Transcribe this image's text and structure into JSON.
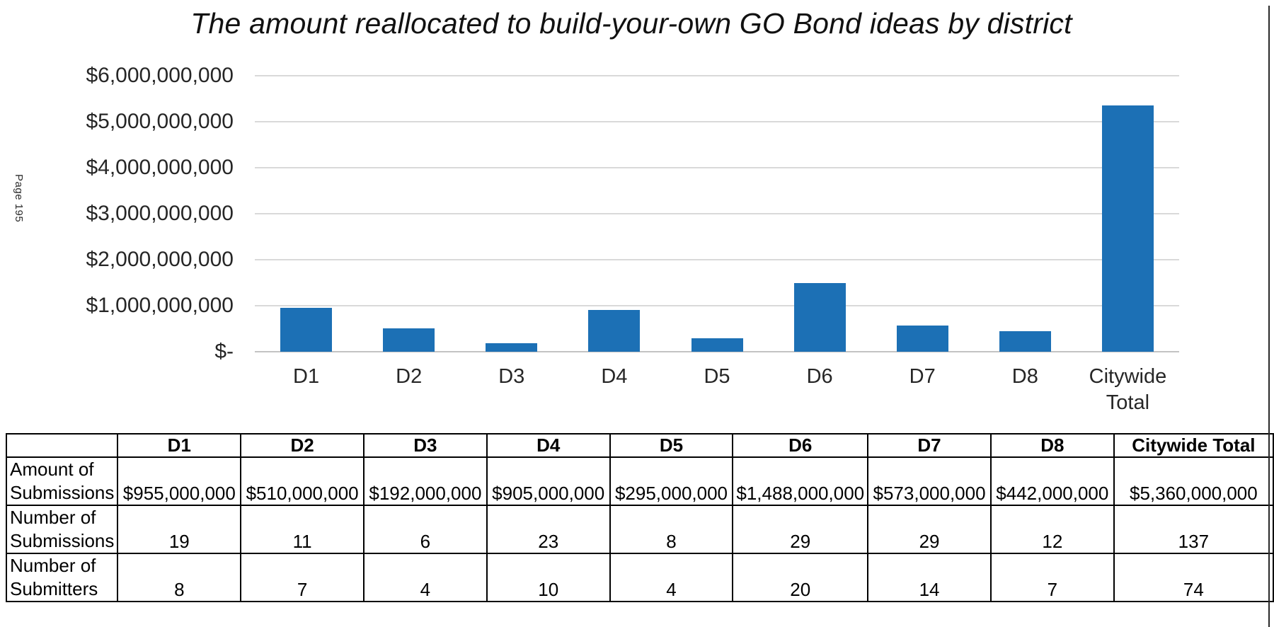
{
  "page_marker": "Page 195",
  "chart_data": {
    "type": "bar",
    "title": "The amount reallocated to build-your-own GO Bond ideas by district",
    "categories": [
      "D1",
      "D2",
      "D3",
      "D4",
      "D5",
      "D6",
      "D7",
      "D8",
      "Citywide Total"
    ],
    "values": [
      955000000,
      510000000,
      192000000,
      905000000,
      295000000,
      1488000000,
      573000000,
      442000000,
      5360000000
    ],
    "xlabel": "",
    "ylabel": "",
    "ylim": [
      0,
      6000000000
    ],
    "y_ticks": [
      {
        "label": "$6,000,000,000",
        "value": 6000000000
      },
      {
        "label": "$5,000,000,000",
        "value": 5000000000
      },
      {
        "label": "$4,000,000,000",
        "value": 4000000000
      },
      {
        "label": "$3,000,000,000",
        "value": 3000000000
      },
      {
        "label": "$2,000,000,000",
        "value": 2000000000
      },
      {
        "label": "$1,000,000,000",
        "value": 1000000000
      },
      {
        "label": "$-",
        "value": 0
      }
    ],
    "grid": true,
    "legend": "none",
    "bar_color": "#1c70b5",
    "gridline_color": "#d9d9d9"
  },
  "table": {
    "column_headers": [
      "D1",
      "D2",
      "D3",
      "D4",
      "D5",
      "D6",
      "D7",
      "D8",
      "Citywide Total"
    ],
    "rows": [
      {
        "label": "Amount of Submissions",
        "values": [
          "$955,000,000",
          "$510,000,000",
          "$192,000,000",
          "$905,000,000",
          "$295,000,000",
          "$1,488,000,000",
          "$573,000,000",
          "$442,000,000",
          "$5,360,000,000"
        ]
      },
      {
        "label": "Number of Submissions",
        "values": [
          "19",
          "11",
          "6",
          "23",
          "8",
          "29",
          "29",
          "12",
          "137"
        ]
      },
      {
        "label": "Number of Submitters",
        "values": [
          "8",
          "7",
          "4",
          "10",
          "4",
          "20",
          "14",
          "7",
          "74"
        ]
      }
    ]
  }
}
